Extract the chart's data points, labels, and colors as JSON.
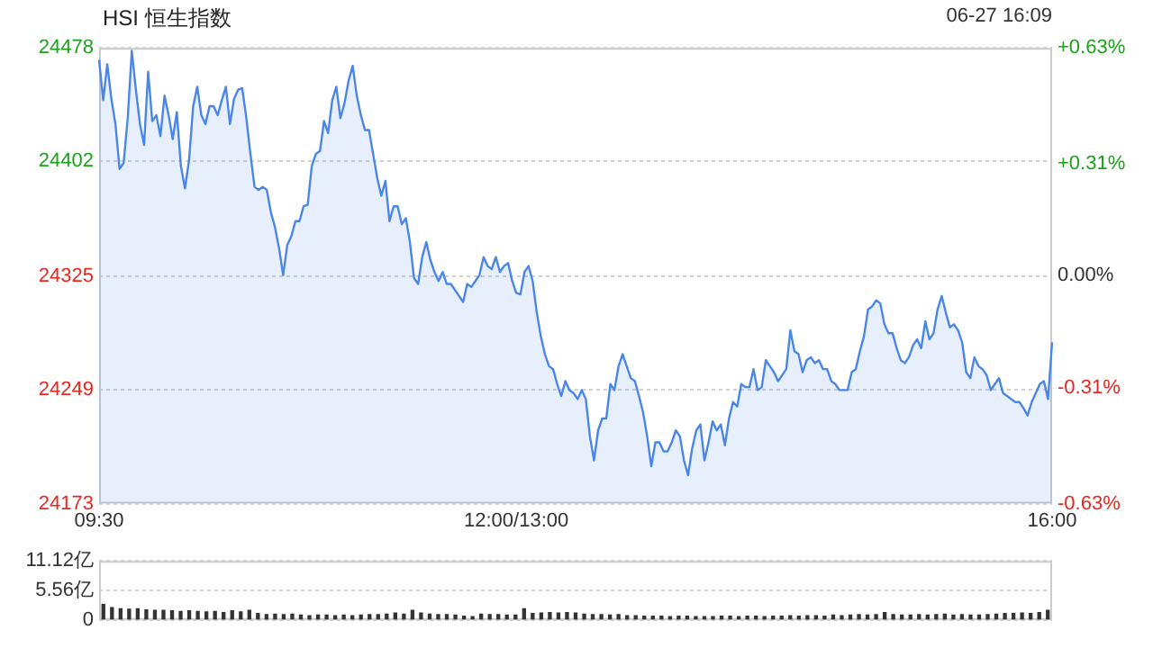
{
  "chart_data": [
    {
      "type": "area",
      "title": "HSI 恒生指数",
      "annotations": [
        "06-27 16:09"
      ],
      "categories": [
        "09:30",
        null,
        null,
        null,
        null,
        null,
        null,
        null,
        null,
        null,
        null,
        null,
        null,
        null,
        null,
        null,
        null,
        null,
        null,
        null,
        null,
        null,
        null,
        null,
        null,
        null,
        null,
        null,
        null,
        null,
        null,
        null,
        null,
        null,
        null,
        null,
        null,
        null,
        null,
        null,
        null,
        null,
        null,
        null,
        null,
        null,
        null,
        null,
        null,
        null,
        null,
        null,
        null,
        null,
        null,
        null,
        null,
        null,
        null,
        null,
        null,
        null,
        null,
        null,
        null,
        null,
        null,
        null,
        null,
        null,
        null,
        null,
        null,
        null,
        null,
        null,
        null,
        null,
        null,
        null,
        null,
        null,
        null,
        null,
        null,
        null,
        null,
        null,
        null,
        null,
        null,
        null,
        null,
        null,
        null,
        null,
        null,
        null,
        null,
        null,
        null,
        null,
        "12:00/13:00",
        null,
        null,
        null,
        null,
        null,
        null,
        null,
        null,
        null,
        null,
        null,
        null,
        null,
        null,
        null,
        null,
        null,
        null,
        null,
        null,
        null,
        null,
        null,
        null,
        null,
        null,
        null,
        null,
        null,
        null,
        null,
        null,
        null,
        null,
        null,
        null,
        null,
        null,
        null,
        null,
        null,
        null,
        null,
        null,
        null,
        null,
        null,
        null,
        null,
        null,
        null,
        null,
        null,
        null,
        null,
        null,
        null,
        null,
        null,
        null,
        null,
        null,
        null,
        null,
        null,
        null,
        null,
        null,
        null,
        null,
        null,
        null,
        null,
        null,
        null,
        null,
        null,
        null,
        null,
        null,
        null,
        null,
        null,
        null,
        null,
        null,
        null,
        null,
        null,
        null,
        null,
        null,
        null,
        null,
        null,
        null,
        null,
        null,
        null,
        null,
        null,
        null,
        null,
        null,
        null,
        null,
        null,
        null,
        null,
        null,
        null,
        null,
        null,
        null,
        null,
        null,
        null,
        null,
        null,
        null,
        null,
        null,
        null,
        null,
        null,
        null,
        null,
        null,
        null,
        null,
        "16:00"
      ],
      "ylim": [
        24173,
        24478
      ],
      "yticks": [
        24173,
        24249,
        24325,
        24402,
        24478
      ],
      "y2lim": [
        -0.63,
        0.63
      ],
      "y2ticks": [
        {
          "value": -0.63,
          "label": "-0.63%"
        },
        {
          "value": -0.31,
          "label": "-0.31%"
        },
        {
          "value": 0,
          "label": "0.00%"
        },
        {
          "value": 0.31,
          "label": "+0.31%"
        },
        {
          "value": 0.63,
          "label": "+0.63%"
        }
      ],
      "grid": "y",
      "legend": false,
      "series": [
        {
          "color": "#4a86e8",
          "values": [
            24470,
            24443,
            24467,
            24444,
            24427,
            24397,
            24401,
            24431,
            24476,
            24450,
            24427,
            24413,
            24462,
            24429,
            24433,
            24419,
            24446,
            24433,
            24417,
            24435,
            24399,
            24384,
            24403,
            24439,
            24452,
            24433,
            24427,
            24439,
            24439,
            24433,
            24443,
            24452,
            24427,
            24444,
            24450,
            24451,
            24431,
            24407,
            24385,
            24383,
            24385,
            24383,
            24368,
            24358,
            24344,
            24326,
            24346,
            24352,
            24362,
            24362,
            24372,
            24373,
            24399,
            24407,
            24409,
            24429,
            24421,
            24443,
            24452,
            24431,
            24441,
            24456,
            24466,
            24446,
            24433,
            24423,
            24423,
            24407,
            24391,
            24379,
            24389,
            24362,
            24372,
            24372,
            24360,
            24364,
            24348,
            24324,
            24320,
            24338,
            24348,
            24336,
            24328,
            24322,
            24328,
            24320,
            24320,
            24316,
            24312,
            24308,
            24320,
            24318,
            24322,
            24326,
            24338,
            24332,
            24330,
            24338,
            24328,
            24332,
            24334,
            24322,
            24314,
            24313,
            24328,
            24332,
            24322,
            24301,
            24285,
            24273,
            24265,
            24263,
            24253,
            24245,
            24255,
            24249,
            24247,
            24243,
            24249,
            24243,
            24218,
            24202,
            24222,
            24230,
            24230,
            24253,
            24249,
            24265,
            24273,
            24265,
            24257,
            24255,
            24245,
            24234,
            24218,
            24198,
            24214,
            24214,
            24208,
            24208,
            24214,
            24222,
            24218,
            24202,
            24192,
            24210,
            24222,
            24226,
            24202,
            24214,
            24228,
            24222,
            24226,
            24212,
            24230,
            24241,
            24238,
            24253,
            24251,
            24251,
            24263,
            24249,
            24251,
            24269,
            24265,
            24261,
            24255,
            24259,
            24263,
            24289,
            24275,
            24273,
            24261,
            24269,
            24271,
            24267,
            24269,
            24263,
            24263,
            24255,
            24253,
            24249,
            24249,
            24249,
            24261,
            24263,
            24275,
            24285,
            24303,
            24305,
            24309,
            24307,
            24293,
            24287,
            24287,
            24277,
            24269,
            24267,
            24271,
            24279,
            24283,
            24277,
            24295,
            24283,
            24287,
            24303,
            24312,
            24301,
            24291,
            24293,
            24289,
            24281,
            24261,
            24257,
            24271,
            24265,
            24263,
            24259,
            24249,
            24253,
            24257,
            24247,
            24245,
            24243,
            24241,
            24241,
            24237,
            24232,
            24241,
            24247,
            24253,
            24255,
            24243,
            24281
          ]
        }
      ]
    },
    {
      "type": "bar",
      "categories": [
        null,
        null,
        null,
        null,
        null,
        null,
        null,
        null,
        null,
        null,
        null,
        null,
        null,
        null,
        null,
        null,
        null,
        null,
        null,
        null,
        null,
        null,
        null,
        null,
        null,
        null,
        null,
        null,
        null,
        null,
        null,
        null,
        null,
        null,
        null,
        null,
        null,
        null,
        null,
        null,
        null,
        null,
        null,
        null,
        null,
        null,
        null,
        null,
        null,
        null,
        null,
        null,
        null,
        null,
        null,
        null,
        null,
        null,
        null,
        null,
        null,
        null,
        null,
        null,
        null,
        null,
        null,
        null,
        null,
        null,
        null,
        null,
        null,
        null,
        null,
        null,
        null,
        null,
        null,
        null,
        null,
        null,
        null,
        null,
        null,
        null,
        null,
        null,
        null,
        null,
        null,
        null,
        null,
        null,
        null,
        null,
        null,
        null,
        null,
        null,
        null,
        null,
        null,
        null,
        null,
        null,
        null,
        null,
        null,
        null,
        null
      ],
      "ylim": [
        0,
        11.12
      ],
      "yticks": [
        {
          "value": 0,
          "label": "0"
        },
        {
          "value": 5.56,
          "label": "5.56亿"
        },
        {
          "value": 11.12,
          "label": "11.12亿"
        }
      ],
      "grid": "y",
      "legend": false,
      "tick_labels": "y",
      "series": [
        {
          "color": "#333333",
          "values": [
            2.9,
            2.3,
            2.1,
            2.0,
            2.1,
            1.9,
            1.8,
            1.8,
            1.7,
            1.6,
            1.7,
            1.6,
            1.5,
            1.6,
            1.4,
            1.7,
            1.5,
            1.8,
            1.2,
            1.0,
            1.1,
            1.0,
            1.1,
            0.9,
            0.8,
            0.9,
            0.9,
            0.8,
            0.9,
            0.8,
            0.9,
            1.0,
            1.0,
            1.1,
            1.3,
            1.1,
            1.8,
            1.3,
            1.1,
            1.0,
            1.0,
            0.9,
            0.7,
            0.6,
            1.1,
            1.0,
            1.0,
            0.9,
            0.9,
            2.1,
            1.2,
            1.3,
            1.4,
            1.3,
            1.4,
            1.3,
            1.1,
            1.0,
            1.0,
            0.9,
            1.0,
            0.8,
            0.8,
            0.7,
            0.7,
            0.7,
            0.6,
            0.7,
            0.7,
            0.6,
            0.6,
            0.6,
            0.7,
            0.7,
            0.6,
            0.7,
            0.7,
            0.6,
            0.7,
            0.7,
            0.8,
            0.7,
            0.8,
            0.8,
            0.7,
            0.9,
            0.8,
            0.9,
            1.0,
            0.9,
            1.0,
            1.4,
            1.0,
            0.9,
            0.9,
            1.0,
            0.9,
            1.0,
            1.1,
            0.9,
            1.0,
            0.9,
            0.9,
            1.0,
            1.1,
            1.2,
            1.2,
            1.3,
            1.2,
            1.4,
            1.8
          ]
        }
      ]
    }
  ]
}
